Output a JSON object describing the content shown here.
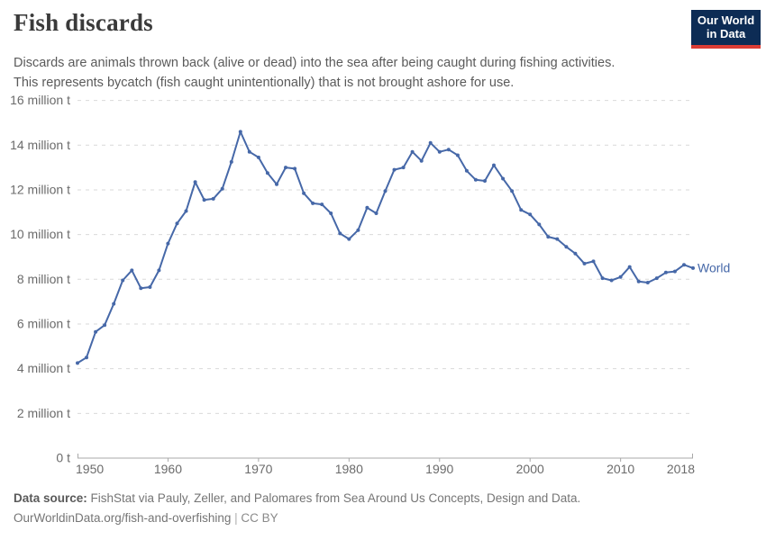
{
  "header": {
    "title": "Fish discards",
    "subtitle_line1": "Discards are animals thrown back (alive or dead) into the sea after being caught during fishing activities.",
    "subtitle_line2": "This represents bycatch (fish caught unintentionally) that is not brought ashore for use.",
    "logo": {
      "line1": "Our World",
      "line2": "in Data",
      "bg_color": "#0d2c55",
      "bar_color": "#dc3c34"
    }
  },
  "footer": {
    "source_label": "Data source:",
    "source_text": " FishStat via Pauly, Zeller, and Palomares from Sea Around Us Concepts, Design and Data.",
    "url": "OurWorldinData.org/fish-and-overfishing",
    "separator": " | ",
    "license": "CC BY"
  },
  "chart_data": {
    "type": "line",
    "title": "Fish discards",
    "unit": "million t",
    "ylim": [
      0,
      16
    ],
    "grid": "horizontal-dashed",
    "legend_position": "end-of-line-label",
    "line_color": "#4668a8",
    "axis_text_color": "#6b6b6b",
    "gridline_color": "#d9d9d9",
    "axis_line_color": "#a8a8a8",
    "yticks": [
      {
        "value": 0,
        "label": "0 t"
      },
      {
        "value": 2,
        "label": "2 million t"
      },
      {
        "value": 4,
        "label": "4 million t"
      },
      {
        "value": 6,
        "label": "6 million t"
      },
      {
        "value": 8,
        "label": "8 million t"
      },
      {
        "value": 10,
        "label": "10 million t"
      },
      {
        "value": 12,
        "label": "12 million t"
      },
      {
        "value": 14,
        "label": "14 million t"
      },
      {
        "value": 16,
        "label": "16 million t"
      }
    ],
    "xticks": [
      {
        "value": 1950,
        "label": "1950"
      },
      {
        "value": 1960,
        "label": "1960"
      },
      {
        "value": 1970,
        "label": "1970"
      },
      {
        "value": 1980,
        "label": "1980"
      },
      {
        "value": 1990,
        "label": "1990"
      },
      {
        "value": 2000,
        "label": "2000"
      },
      {
        "value": 2010,
        "label": "2010"
      },
      {
        "value": 2018,
        "label": "2018"
      }
    ],
    "x": [
      1950,
      1951,
      1952,
      1953,
      1954,
      1955,
      1956,
      1957,
      1958,
      1959,
      1960,
      1961,
      1962,
      1963,
      1964,
      1965,
      1966,
      1967,
      1968,
      1969,
      1970,
      1971,
      1972,
      1973,
      1974,
      1975,
      1976,
      1977,
      1978,
      1979,
      1980,
      1981,
      1982,
      1983,
      1984,
      1985,
      1986,
      1987,
      1988,
      1989,
      1990,
      1991,
      1992,
      1993,
      1994,
      1995,
      1996,
      1997,
      1998,
      1999,
      2000,
      2001,
      2002,
      2003,
      2004,
      2005,
      2006,
      2007,
      2008,
      2009,
      2010,
      2011,
      2012,
      2013,
      2014,
      2015,
      2016,
      2017,
      2018
    ],
    "series": [
      {
        "name": "World",
        "values": [
          4.25,
          4.5,
          5.65,
          5.95,
          6.9,
          7.95,
          8.4,
          7.6,
          7.65,
          8.4,
          9.6,
          10.5,
          11.05,
          12.35,
          11.55,
          11.6,
          12.05,
          13.25,
          14.6,
          13.7,
          13.45,
          12.75,
          12.25,
          13.0,
          12.95,
          11.85,
          11.4,
          11.35,
          10.95,
          10.05,
          9.8,
          10.2,
          11.2,
          10.95,
          11.95,
          12.9,
          13.0,
          13.7,
          13.3,
          14.1,
          13.7,
          13.8,
          13.55,
          12.85,
          12.45,
          12.4,
          13.1,
          12.5,
          11.95,
          11.1,
          10.9,
          10.45,
          9.9,
          9.8,
          9.45,
          9.15,
          8.7,
          8.8,
          8.05,
          7.95,
          8.1,
          8.55,
          7.9,
          7.85,
          8.05,
          8.3,
          8.35,
          8.65,
          8.5
        ]
      }
    ]
  }
}
